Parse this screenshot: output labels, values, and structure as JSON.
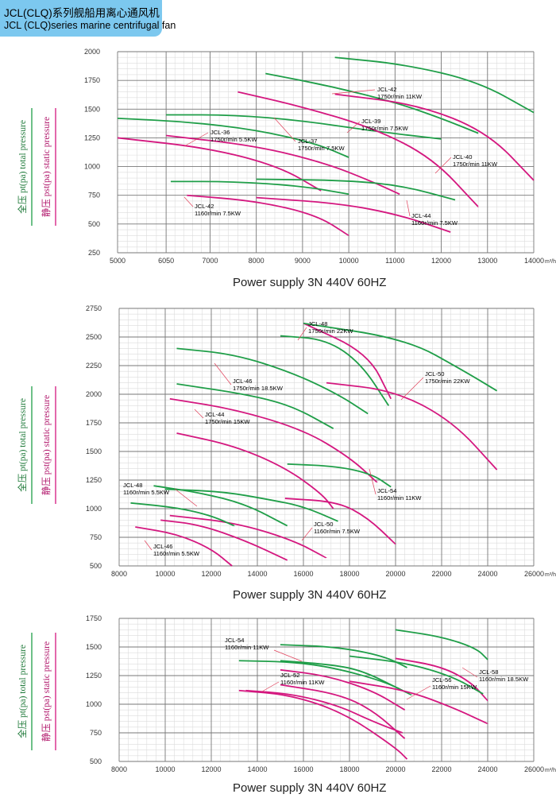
{
  "header": {
    "title_cn": "JCL(CLQ)系列舰船用离心通风机",
    "title_en": "JCL (CLQ)series marine centrifugal fan"
  },
  "legend": {
    "total_pressure": "全压 pt(pa)  total pressure",
    "static_pressure": "静压 pst(pa)  static pressure",
    "total_color": "#1f9e48",
    "static_color": "#d4177f"
  },
  "chart_data": [
    {
      "type": "line",
      "xlabel": "Power supply    3N  440V  60HZ",
      "x_unit": "m³/h",
      "xlim": [
        5000,
        14000
      ],
      "ylim": [
        250,
        2000
      ],
      "x_ticks": [
        5000,
        6050,
        7000,
        8000,
        9000,
        10000,
        11000,
        12000,
        13000,
        14000
      ],
      "y_ticks": [
        250,
        500,
        750,
        1000,
        1250,
        1500,
        1750,
        2000
      ],
      "grid": true,
      "series": [
        {
          "kind": "total",
          "points": [
            [
              5000,
              1420
            ],
            [
              6500,
              1390
            ],
            [
              8000,
              1320
            ],
            [
              9300,
              1200
            ],
            [
              10000,
              1080
            ]
          ]
        },
        {
          "kind": "static",
          "points": [
            [
              5000,
              1250
            ],
            [
              7000,
              1160
            ],
            [
              8500,
              1000
            ],
            [
              9400,
              790
            ]
          ]
        },
        {
          "kind": "total",
          "points": [
            [
              6050,
              1450
            ],
            [
              7500,
              1450
            ],
            [
              9000,
              1400
            ],
            [
              10500,
              1310
            ],
            [
              12000,
              1240
            ]
          ]
        },
        {
          "kind": "static",
          "points": [
            [
              6050,
              1270
            ],
            [
              8000,
              1180
            ],
            [
              9500,
              1030
            ],
            [
              10500,
              870
            ],
            [
              11100,
              760
            ]
          ]
        },
        {
          "kind": "total",
          "points": [
            [
              8200,
              1810
            ],
            [
              9600,
              1700
            ],
            [
              11000,
              1560
            ],
            [
              12000,
              1420
            ],
            [
              12800,
              1290
            ]
          ]
        },
        {
          "kind": "static",
          "points": [
            [
              7600,
              1650
            ],
            [
              9000,
              1520
            ],
            [
              10500,
              1340
            ],
            [
              11800,
              1080
            ],
            [
              12800,
              650
            ]
          ]
        },
        {
          "kind": "total",
          "points": [
            [
              9700,
              1950
            ],
            [
              11200,
              1890
            ],
            [
              12800,
              1740
            ],
            [
              14000,
              1470
            ]
          ]
        },
        {
          "kind": "static",
          "points": [
            [
              9700,
              1630
            ],
            [
              11500,
              1540
            ],
            [
              13000,
              1300
            ],
            [
              14000,
              880
            ]
          ]
        },
        {
          "kind": "total",
          "points": [
            [
              6150,
              870
            ],
            [
              7500,
              870
            ],
            [
              9000,
              830
            ],
            [
              10000,
              760
            ]
          ]
        },
        {
          "kind": "static",
          "points": [
            [
              6500,
              750
            ],
            [
              8000,
              700
            ],
            [
              9300,
              580
            ],
            [
              10000,
              400
            ]
          ]
        },
        {
          "kind": "total",
          "points": [
            [
              8000,
              890
            ],
            [
              10000,
              880
            ],
            [
              11200,
              830
            ],
            [
              12300,
              710
            ]
          ]
        },
        {
          "kind": "static",
          "points": [
            [
              8000,
              730
            ],
            [
              9800,
              680
            ],
            [
              11100,
              580
            ],
            [
              12200,
              430
            ]
          ]
        }
      ],
      "labels": [
        {
          "name": "JCL-36",
          "detail": "1750r/min   5.5KW"
        },
        {
          "name": "JCL-37",
          "detail": "1750r/min   7.5KW"
        },
        {
          "name": "JCL-39",
          "detail": "1750r/min   7.5KW"
        },
        {
          "name": "JCL-42",
          "detail": "1750r/min   11KW"
        },
        {
          "name": "JCL-40",
          "detail": "1750r/min   11KW"
        },
        {
          "name": "JCL-42",
          "detail": "1160r/min   7.5KW"
        },
        {
          "name": "JCL-44",
          "detail": "1160r/min   7.5KW"
        }
      ]
    },
    {
      "type": "line",
      "xlabel": "Power supply    3N  440V  60HZ",
      "x_unit": "m³/h",
      "xlim": [
        8000,
        26000
      ],
      "ylim": [
        500,
        2750
      ],
      "x_ticks": [
        8000,
        10000,
        12000,
        14000,
        16000,
        18000,
        20000,
        22000,
        24000,
        26000
      ],
      "y_ticks": [
        500,
        750,
        1000,
        1250,
        1500,
        1750,
        2000,
        2250,
        2500,
        2750
      ],
      "grid": true,
      "series": [
        {
          "kind": "total",
          "points": [
            [
              15000,
              2510
            ],
            [
              17000,
              2480
            ],
            [
              18500,
              2270
            ],
            [
              19700,
              1900
            ]
          ]
        },
        {
          "kind": "static",
          "points": [
            [
              16000,
              2620
            ],
            [
              18800,
              2360
            ],
            [
              19800,
              1960
            ]
          ]
        },
        {
          "kind": "total",
          "points": [
            [
              16000,
              2620
            ],
            [
              20500,
              2480
            ],
            [
              23000,
              2200
            ],
            [
              24400,
              2030
            ]
          ]
        },
        {
          "kind": "static",
          "points": [
            [
              17000,
              2100
            ],
            [
              20000,
              2030
            ],
            [
              22500,
              1760
            ],
            [
              24400,
              1340
            ]
          ]
        },
        {
          "kind": "total",
          "points": [
            [
              10500,
              2400
            ],
            [
              13000,
              2350
            ],
            [
              15500,
              2190
            ],
            [
              17500,
              2000
            ],
            [
              18800,
              1830
            ]
          ]
        },
        {
          "kind": "static",
          "points": [
            [
              10200,
              1960
            ],
            [
              13000,
              1870
            ],
            [
              16000,
              1690
            ],
            [
              18000,
              1450
            ],
            [
              19200,
              1230
            ]
          ]
        },
        {
          "kind": "total",
          "points": [
            [
              10500,
              2090
            ],
            [
              13500,
              2000
            ],
            [
              15500,
              1900
            ],
            [
              17300,
              1700
            ]
          ]
        },
        {
          "kind": "static",
          "points": [
            [
              10500,
              1660
            ],
            [
              13000,
              1550
            ],
            [
              15200,
              1360
            ],
            [
              16800,
              1130
            ],
            [
              17300,
              1000
            ]
          ]
        },
        {
          "kind": "total",
          "points": [
            [
              15300,
              1390
            ],
            [
              17500,
              1370
            ],
            [
              19000,
              1300
            ],
            [
              19800,
              1190
            ]
          ]
        },
        {
          "kind": "static",
          "points": [
            [
              15200,
              1090
            ],
            [
              17500,
              1060
            ],
            [
              18800,
              920
            ],
            [
              20000,
              690
            ]
          ]
        },
        {
          "kind": "total",
          "points": [
            [
              10000,
              1170
            ],
            [
              12500,
              1150
            ],
            [
              14500,
              1080
            ],
            [
              16000,
              1020
            ],
            [
              17500,
              890
            ]
          ]
        },
        {
          "kind": "static",
          "points": [
            [
              10200,
              940
            ],
            [
              13000,
              880
            ],
            [
              15500,
              730
            ],
            [
              17000,
              570
            ]
          ]
        },
        {
          "kind": "total",
          "points": [
            [
              8500,
              1050
            ],
            [
              10500,
              1010
            ],
            [
              12000,
              940
            ],
            [
              13000,
              850
            ]
          ]
        },
        {
          "kind": "static",
          "points": [
            [
              8700,
              840
            ],
            [
              10500,
              780
            ],
            [
              12000,
              650
            ],
            [
              12900,
              500
            ]
          ]
        },
        {
          "kind": "total",
          "points": [
            [
              9500,
              1200
            ],
            [
              11500,
              1140
            ],
            [
              13500,
              1040
            ],
            [
              15300,
              850
            ]
          ]
        },
        {
          "kind": "static",
          "points": [
            [
              9800,
              900
            ],
            [
              11500,
              860
            ],
            [
              13500,
              720
            ],
            [
              15300,
              550
            ]
          ]
        }
      ],
      "labels": [
        {
          "name": "JCL-48",
          "detail": "1750r/min   22KW"
        },
        {
          "name": "JCL-50",
          "detail": "1750r/min   22KW"
        },
        {
          "name": "JCL-46",
          "detail": "1750r/min   18.5KW"
        },
        {
          "name": "JCL-44",
          "detail": "1750r/min   15KW"
        },
        {
          "name": "JCL-54",
          "detail": "1160r/min   11KW"
        },
        {
          "name": "JCL-48",
          "detail": "1160r/min   5.5KW"
        },
        {
          "name": "JCL-50",
          "detail": "1160r/min   7.5KW"
        },
        {
          "name": "JCL-46",
          "detail": "1160r/min   5.5KW"
        }
      ]
    },
    {
      "type": "line",
      "xlabel": "Power supply    3N  440V  60HZ",
      "x_unit": "m³/h",
      "xlim": [
        8000,
        26000
      ],
      "ylim": [
        500,
        1750
      ],
      "x_ticks": [
        8000,
        10000,
        12000,
        14000,
        16000,
        18000,
        20000,
        22000,
        24000,
        26000
      ],
      "y_ticks": [
        500,
        750,
        1000,
        1250,
        1500,
        1750
      ],
      "grid": true,
      "series": [
        {
          "kind": "total",
          "points": [
            [
              15000,
              1520
            ],
            [
              17500,
              1500
            ],
            [
              19500,
              1420
            ],
            [
              20500,
              1320
            ]
          ]
        },
        {
          "kind": "static",
          "points": [
            [
              15000,
              1300
            ],
            [
              17000,
              1250
            ],
            [
              19000,
              1120
            ],
            [
              20400,
              950
            ]
          ]
        },
        {
          "kind": "total",
          "points": [
            [
              13200,
              1380
            ],
            [
              15500,
              1370
            ],
            [
              17300,
              1320
            ],
            [
              19500,
              1200
            ],
            [
              20700,
              1080
            ]
          ]
        },
        {
          "kind": "static",
          "points": [
            [
              13500,
              1120
            ],
            [
              15500,
              1090
            ],
            [
              17500,
              990
            ],
            [
              19000,
              850
            ],
            [
              20300,
              750
            ]
          ]
        },
        {
          "kind": "total",
          "points": [
            [
              15000,
              1380
            ],
            [
              17000,
              1350
            ],
            [
              18500,
              1300
            ],
            [
              20300,
              1120
            ]
          ]
        },
        {
          "kind": "static",
          "points": [
            [
              15000,
              1170
            ],
            [
              17500,
              1090
            ],
            [
              19000,
              950
            ],
            [
              20400,
              700
            ]
          ]
        },
        {
          "kind": "total",
          "points": [
            [
              20000,
              1650
            ],
            [
              22000,
              1590
            ],
            [
              23500,
              1490
            ],
            [
              24000,
              1390
            ]
          ]
        },
        {
          "kind": "static",
          "points": [
            [
              20000,
              1400
            ],
            [
              22000,
              1330
            ],
            [
              23300,
              1190
            ],
            [
              24000,
              1030
            ]
          ]
        },
        {
          "kind": "total",
          "points": [
            [
              18000,
              1420
            ],
            [
              20500,
              1360
            ],
            [
              22500,
              1240
            ],
            [
              23800,
              1090
            ]
          ]
        },
        {
          "kind": "static",
          "points": [
            [
              18000,
              1200
            ],
            [
              20500,
              1120
            ],
            [
              22500,
              970
            ],
            [
              24000,
              830
            ]
          ]
        },
        {
          "kind": "static",
          "points": [
            [
              13200,
              1120
            ],
            [
              15500,
              1080
            ],
            [
              17800,
              920
            ],
            [
              20000,
              620
            ],
            [
              20500,
              520
            ]
          ]
        }
      ],
      "labels": [
        {
          "name": "JCL-54",
          "detail": "1160r/min   11KW"
        },
        {
          "name": "JCL-52",
          "detail": "1160r/min   11KW"
        },
        {
          "name": "JCL-56",
          "detail": "1160r/min   15KW"
        },
        {
          "name": "JCL-58",
          "detail": "1160r/min   18.5KW"
        }
      ]
    }
  ]
}
